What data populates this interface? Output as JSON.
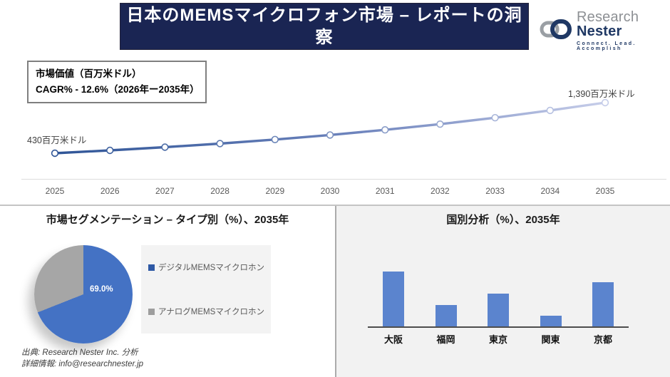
{
  "header": {
    "title": "日本のMEMSマイクロフォン市場 – レポートの洞察"
  },
  "logo": {
    "brand_part1": "Research",
    "brand_part2": "Nester",
    "tagline": "Connect. Lead. Accomplish"
  },
  "info_box": {
    "line1": "市場価値（百万米ドル）",
    "line2": "CAGR% - 12.6%（2026年ー2035年）"
  },
  "sections": {
    "pie_title": "市場セグメンテーション – タイプ別（%）、2035年",
    "bar_title": "国別分析（%）、2035年"
  },
  "footer": {
    "line1": "出典: Research Nester Inc. 分析",
    "line2": "詳細情報: info@researchnester.jp"
  },
  "colors": {
    "header_bg": "#1a2553",
    "line_dark": "#2f5597",
    "line_light": "#c6cde9",
    "pie_blue": "#4472c4",
    "pie_gray": "#a6a6a6",
    "bar_blue": "#5b84ce",
    "panel_gray": "#f2f2f2"
  },
  "chart_data": [
    {
      "type": "line",
      "title": "市場価値（百万米ドル）",
      "x": [
        2025,
        2026,
        2027,
        2028,
        2029,
        2030,
        2031,
        2032,
        2033,
        2034,
        2035
      ],
      "values": [
        430,
        484,
        545,
        613,
        690,
        776,
        873,
        982,
        1104,
        1242,
        1390
      ],
      "values_note": "only endpoints labeled on chart; intermediate values estimated from 12.6% CAGR trend",
      "start_label": "430百万米ドル",
      "end_label": "1,390百万米ドル",
      "cagr": "12.6%",
      "cagr_period": "2026年ー2035年",
      "ylim": [
        430,
        1390
      ],
      "grid": false,
      "legend_position": "none"
    },
    {
      "type": "pie",
      "title": "市場セグメンテーション – タイプ別（%）、2035年",
      "labels": [
        "デジタルMEMSマイクロホン",
        "アナログMEMSマイクロホン"
      ],
      "values": [
        69.0,
        31.0
      ],
      "data_label": "69.0%",
      "colors": [
        "#4472c4",
        "#a6a6a6"
      ],
      "swatch_colors": [
        "#2e59a5",
        "#9e9e9e"
      ],
      "legend_position": "right"
    },
    {
      "type": "bar",
      "title": "国別分析（%）、2035年",
      "categories": [
        "大阪",
        "福岡",
        "東京",
        "関東",
        "京都"
      ],
      "values": [
        100,
        39,
        60,
        19,
        80
      ],
      "values_note": "no value labels shown; heights relative to tallest bar (大阪 = 100)",
      "color": "#5b84ce",
      "grid": false,
      "legend_position": "none"
    }
  ]
}
